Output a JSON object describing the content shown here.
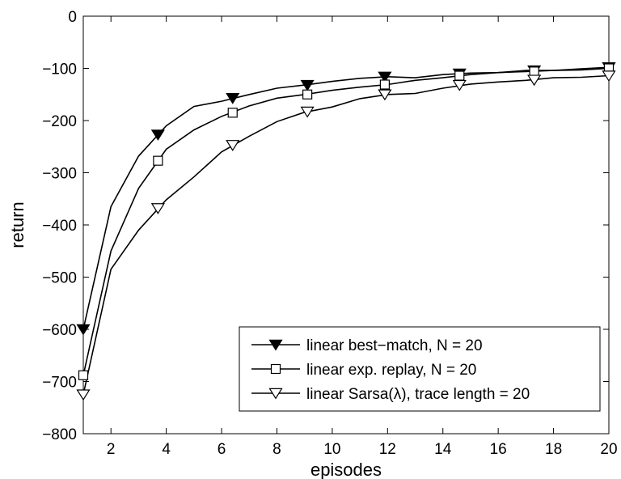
{
  "chart_data": {
    "type": "line",
    "title": "",
    "xlabel": "episodes",
    "ylabel": "return",
    "xlim": [
      1,
      20
    ],
    "ylim": [
      -800,
      0
    ],
    "xticks": [
      2,
      4,
      6,
      8,
      10,
      12,
      14,
      16,
      18,
      20
    ],
    "yticks": [
      0,
      -100,
      -200,
      -300,
      -400,
      -500,
      -600,
      -700,
      -800
    ],
    "grid": false,
    "legend_position": "bottom-right",
    "series": [
      {
        "name": "linear best−match, N = 20",
        "marker": "filled-triangle-down",
        "x": [
          1,
          2,
          3,
          4,
          5,
          6,
          7,
          8,
          9,
          10,
          11,
          12,
          13,
          14,
          15,
          16,
          17,
          18,
          19,
          20
        ],
        "y": [
          -600,
          -365,
          -268,
          -210,
          -173,
          -163,
          -150,
          -138,
          -132,
          -125,
          -119,
          -116,
          -118,
          -112,
          -109,
          -108,
          -104,
          -104,
          -101,
          -98
        ],
        "marker_x": [
          1,
          3.7,
          6.4,
          9.1,
          11.9,
          14.6,
          17.3,
          20
        ],
        "marker_y": [
          -600,
          -227,
          -157,
          -132,
          -116,
          -110,
          -104,
          -98
        ]
      },
      {
        "name": "linear exp. replay, N = 20",
        "marker": "open-square",
        "x": [
          1,
          2,
          3,
          4,
          5,
          6,
          7,
          8,
          9,
          10,
          11,
          12,
          13,
          14,
          15,
          16,
          17,
          18,
          19,
          20
        ],
        "y": [
          -688,
          -450,
          -330,
          -255,
          -218,
          -192,
          -172,
          -157,
          -150,
          -142,
          -136,
          -131,
          -123,
          -118,
          -112,
          -108,
          -106,
          -104,
          -103,
          -100
        ],
        "marker_x": [
          1,
          3.7,
          6.4,
          9.1,
          11.9,
          14.6,
          17.3,
          20
        ],
        "marker_y": [
          -688,
          -277,
          -185,
          -150,
          -131,
          -114,
          -106,
          -100
        ]
      },
      {
        "name": "linear Sarsa(λ), trace length = 20",
        "marker": "open-triangle-down",
        "x": [
          1,
          2,
          3,
          4,
          5,
          6,
          7,
          8,
          9,
          10,
          11,
          12,
          13,
          14,
          15,
          16,
          17,
          18,
          19,
          20
        ],
        "y": [
          -725,
          -485,
          -410,
          -352,
          -308,
          -260,
          -230,
          -202,
          -184,
          -174,
          -158,
          -150,
          -148,
          -138,
          -130,
          -126,
          -123,
          -118,
          -117,
          -114
        ],
        "marker_x": [
          1,
          3.7,
          6.4,
          9.1,
          11.9,
          14.6,
          17.3,
          20
        ],
        "marker_y": [
          -725,
          -368,
          -247,
          -183,
          -150,
          -132,
          -122,
          -114
        ]
      }
    ]
  }
}
